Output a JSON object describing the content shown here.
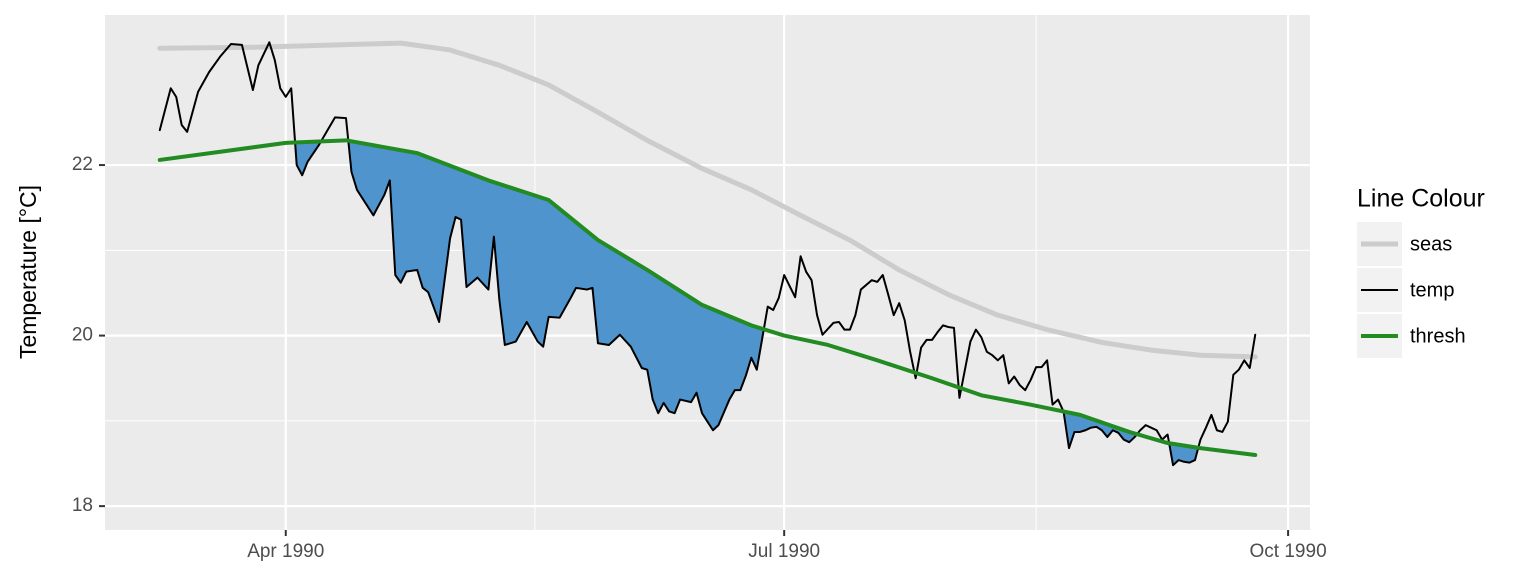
{
  "chart_data": {
    "type": "line",
    "y_label": "Temperature [°C]",
    "xlim": [
      -2,
      218
    ],
    "xticks": [
      {
        "value": 31,
        "label": "Apr 1990"
      },
      {
        "value": 122,
        "label": "Jul 1990"
      },
      {
        "value": 214,
        "label": "Oct 1990"
      }
    ],
    "ylim": [
      17.72,
      23.76
    ],
    "yticks": [
      18,
      20,
      22
    ],
    "grid": true,
    "minor_grid": true,
    "legend": {
      "title": "Line Colour",
      "position": "right"
    },
    "shade": {
      "color": "#4f94cd"
    },
    "series": [
      {
        "name": "seas",
        "color": "#cccccc",
        "width": 5,
        "x": [
          8,
          24,
          52,
          61,
          70,
          79,
          88,
          97,
          107,
          116,
          125,
          134,
          143,
          152,
          161,
          170,
          180,
          189,
          198,
          208
        ],
        "values": [
          23.37,
          23.38,
          23.43,
          23.35,
          23.17,
          22.94,
          22.62,
          22.29,
          21.96,
          21.71,
          21.41,
          21.12,
          20.77,
          20.48,
          20.24,
          20.07,
          19.92,
          19.83,
          19.77,
          19.75
        ]
      },
      {
        "name": "temp",
        "color": "#000000",
        "width": 2,
        "x": [
          8,
          10,
          11,
          12,
          13,
          15,
          17,
          19,
          21,
          23,
          25,
          26,
          28,
          29,
          30,
          31,
          32,
          33,
          34,
          35,
          37,
          40,
          42,
          43,
          44,
          47,
          49,
          50,
          51,
          52,
          53,
          55,
          56,
          57,
          59,
          60,
          61,
          62,
          63,
          64,
          66,
          68,
          69,
          70,
          71,
          73,
          75,
          77,
          78,
          79,
          81,
          83,
          84,
          86,
          87,
          88,
          90,
          92,
          94,
          96,
          97,
          98,
          99,
          100,
          101,
          102,
          103,
          105,
          106,
          107,
          109,
          110,
          112,
          113,
          114,
          115,
          116,
          117,
          119,
          120,
          121,
          122,
          124,
          125,
          126,
          127,
          128,
          129,
          131,
          132,
          133,
          134,
          135,
          136,
          138,
          139,
          140,
          141,
          142,
          143,
          144,
          145,
          146,
          147,
          148,
          149,
          150,
          151,
          152,
          153,
          154,
          155,
          156,
          157,
          158,
          159,
          160,
          161,
          162,
          163,
          164,
          165,
          166,
          167,
          168,
          169,
          170,
          171,
          172,
          173,
          174,
          175,
          176,
          177,
          178,
          179,
          180,
          181,
          182,
          183,
          184,
          185,
          186,
          187,
          188,
          189,
          190,
          191,
          192,
          193,
          194,
          195,
          196,
          197,
          198,
          199,
          200,
          201,
          202,
          203,
          204,
          205,
          206,
          207,
          208
        ],
        "values": [
          22.41,
          22.9,
          22.8,
          22.47,
          22.39,
          22.86,
          23.09,
          23.27,
          23.42,
          23.41,
          22.88,
          23.17,
          23.44,
          23.23,
          22.9,
          22.8,
          22.9,
          22.0,
          21.88,
          22.04,
          22.23,
          22.56,
          22.55,
          21.92,
          21.71,
          21.41,
          21.65,
          21.82,
          20.71,
          20.62,
          20.75,
          20.77,
          20.56,
          20.51,
          20.16,
          20.65,
          21.14,
          21.39,
          21.36,
          20.57,
          20.68,
          20.54,
          21.16,
          20.42,
          19.89,
          19.93,
          20.16,
          19.93,
          19.87,
          20.22,
          20.21,
          20.44,
          20.56,
          20.54,
          20.56,
          19.91,
          19.89,
          20.01,
          19.87,
          19.62,
          19.6,
          19.25,
          19.09,
          19.21,
          19.11,
          19.09,
          19.25,
          19.22,
          19.33,
          19.09,
          18.89,
          18.95,
          19.25,
          19.36,
          19.36,
          19.53,
          19.74,
          19.6,
          20.34,
          20.3,
          20.44,
          20.71,
          20.45,
          20.93,
          20.75,
          20.65,
          20.24,
          20.01,
          20.15,
          20.16,
          20.07,
          20.07,
          20.24,
          20.54,
          20.65,
          20.63,
          20.71,
          20.48,
          20.24,
          20.38,
          20.18,
          19.81,
          19.5,
          19.86,
          19.95,
          19.95,
          20.04,
          20.12,
          20.1,
          20.09,
          19.27,
          19.6,
          19.93,
          20.07,
          19.98,
          19.81,
          19.77,
          19.71,
          19.77,
          19.44,
          19.52,
          19.42,
          19.36,
          19.48,
          19.63,
          19.63,
          19.71,
          19.19,
          19.25,
          19.11,
          18.68,
          18.87,
          18.87,
          18.89,
          18.92,
          18.93,
          18.89,
          18.81,
          18.89,
          18.86,
          18.78,
          18.75,
          18.81,
          18.89,
          18.95,
          18.92,
          18.89,
          18.78,
          18.84,
          18.48,
          18.54,
          18.52,
          18.51,
          18.54,
          18.78,
          18.92,
          19.07,
          18.89,
          18.87,
          18.99,
          19.54,
          19.6,
          19.71,
          19.62,
          20.01
        ]
      },
      {
        "name": "thresh",
        "color": "#228b22",
        "width": 4,
        "x": [
          8,
          31,
          42,
          55,
          68,
          79,
          88,
          97,
          107,
          116,
          122,
          130,
          139,
          149,
          158,
          167,
          176,
          185,
          192,
          198,
          208
        ],
        "values": [
          22.06,
          22.26,
          22.29,
          22.14,
          21.82,
          21.59,
          21.12,
          20.77,
          20.36,
          20.12,
          20.0,
          19.89,
          19.71,
          19.5,
          19.3,
          19.19,
          19.07,
          18.87,
          18.74,
          18.68,
          18.6
        ]
      }
    ]
  }
}
